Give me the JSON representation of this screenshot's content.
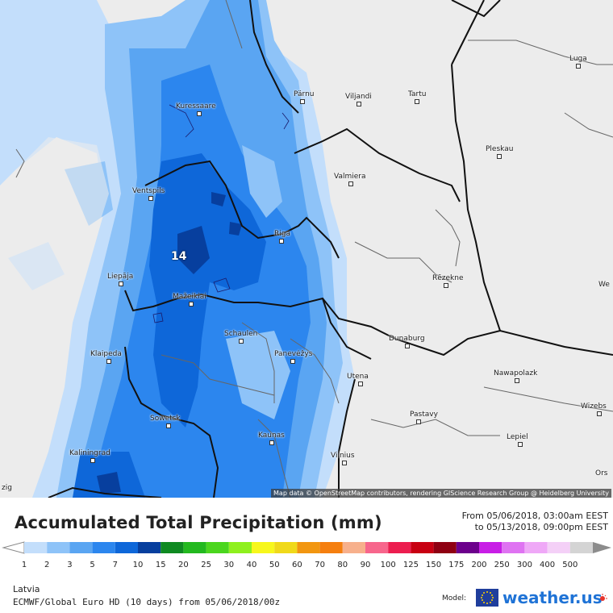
{
  "map": {
    "attribution": "Map data © OpenStreetMap contributors, rendering GIScience Research Group @ Heidelberg University",
    "max_value_label": "14",
    "cities": [
      {
        "name": "Kuressaare"
      },
      {
        "name": "Pärnu"
      },
      {
        "name": "Viljandi"
      },
      {
        "name": "Tartu"
      },
      {
        "name": "Luga"
      },
      {
        "name": "Pleskau"
      },
      {
        "name": "Valmiera"
      },
      {
        "name": "Ventspils"
      },
      {
        "name": "Riga"
      },
      {
        "name": "Liepāja"
      },
      {
        "name": "Mažeikiai"
      },
      {
        "name": "Rēzekne"
      },
      {
        "name": "Schaulen"
      },
      {
        "name": "Klaipeda"
      },
      {
        "name": "Panevėžys"
      },
      {
        "name": "Dunaburg"
      },
      {
        "name": "Utena"
      },
      {
        "name": "Nawapolazk"
      },
      {
        "name": "Sowetsk"
      },
      {
        "name": "Kaunas"
      },
      {
        "name": "Pastavy"
      },
      {
        "name": "Lepiel"
      },
      {
        "name": "Kaliningrad"
      },
      {
        "name": "Vilnius"
      },
      {
        "name": "Wizebs"
      },
      {
        "name": "We"
      },
      {
        "name": "Ors"
      },
      {
        "name": "zig"
      }
    ]
  },
  "header": {
    "title": "Accumulated Total Precipitation (mm)",
    "from": "From 05/06/2018, 03:00am EEST",
    "to": "to 05/13/2018, 09:00pm EEST"
  },
  "legend": {
    "unit": "mm",
    "ticks": [
      "1",
      "2",
      "3",
      "5",
      "7",
      "10",
      "15",
      "20",
      "25",
      "30",
      "40",
      "50",
      "60",
      "70",
      "80",
      "90",
      "100",
      "125",
      "150",
      "175",
      "200",
      "250",
      "300",
      "400",
      "500"
    ],
    "colors": [
      "#c3defb",
      "#8ec3f8",
      "#5aa5f2",
      "#2c86ee",
      "#0e67d9",
      "#073f9e",
      "#0f8a21",
      "#23b91f",
      "#4bd61e",
      "#8ff01e",
      "#f7f71c",
      "#f0d91a",
      "#f29610",
      "#f57f0f",
      "#f7b08c",
      "#f7668c",
      "#ec1d4f",
      "#c80012",
      "#8f0012",
      "#6c008c",
      "#c81ee6",
      "#df73f2",
      "#efa8f7",
      "#f4d0f7",
      "#d4d4d4",
      "#8c8c8c"
    ]
  },
  "footer": {
    "region": "Latvia",
    "model_run": "ECMWF/Global Euro HD (10 days) from 05/06/2018/00z",
    "model_label": "Model:",
    "brand": "weather.us"
  }
}
